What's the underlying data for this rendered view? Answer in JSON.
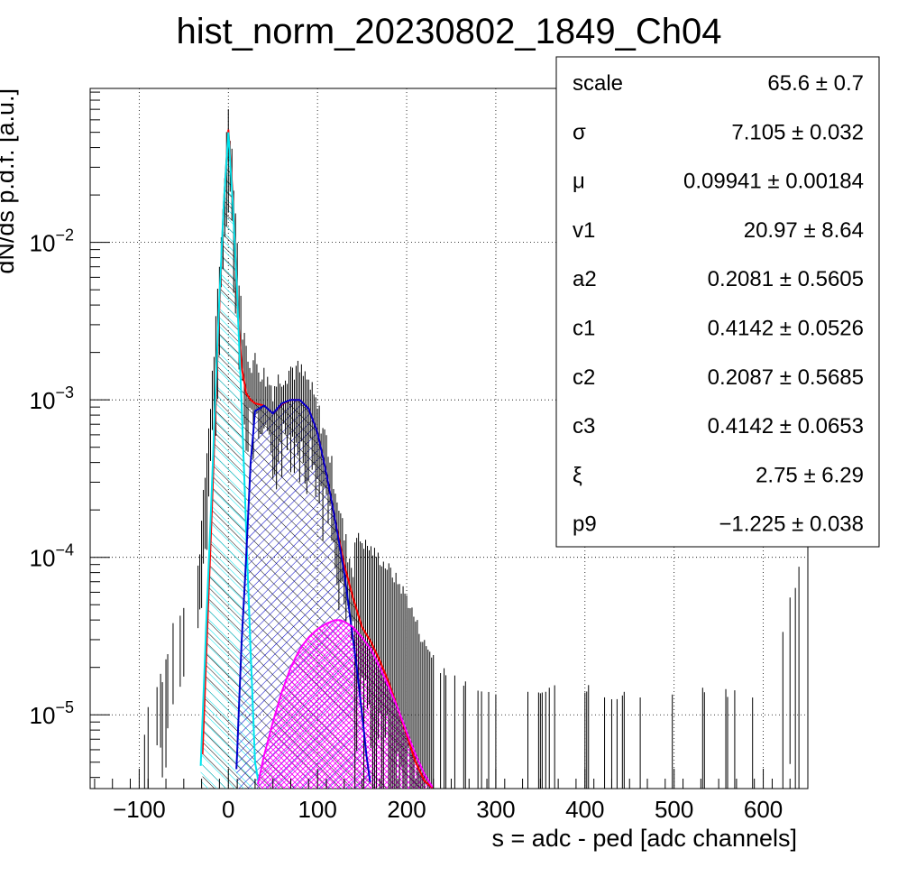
{
  "chart_data": {
    "type": "histogram",
    "title": "hist_norm_20230802_1849_Ch04",
    "xlabel": "s = adc - ped [adc channels]",
    "ylabel": "dN/ds p.d.f. [a.u.]",
    "xlim": [
      -155,
      650
    ],
    "ylim": [
      3.4e-06,
      0.095
    ],
    "ylog": true,
    "grid": true,
    "x_ticks": [
      -100,
      0,
      100,
      200,
      300,
      400,
      500,
      600
    ],
    "x_tick_labels": [
      "−100",
      "0",
      "100",
      "200",
      "300",
      "400",
      "500",
      "600"
    ],
    "y_ticks": [
      {
        "value": 0.01,
        "base": "10",
        "exp": "−2"
      },
      {
        "value": 0.001,
        "base": "10",
        "exp": "−3"
      },
      {
        "value": 0.0001,
        "base": "10",
        "exp": "−4"
      },
      {
        "value": 1e-05,
        "base": "10",
        "exp": "−5"
      }
    ],
    "series": [
      {
        "color": "#000000",
        "style": "histogram with error bars",
        "x": [
          -100,
          -60,
          -40,
          -30,
          -20,
          -10,
          -5,
          0,
          5,
          10,
          15,
          20,
          25,
          30,
          40,
          50,
          60,
          70,
          80,
          90,
          100,
          110,
          120,
          130,
          140,
          150,
          160,
          170,
          180,
          190,
          200,
          220,
          250,
          300,
          400,
          460,
          500,
          600,
          650
        ],
        "y": [
          4e-06,
          2.2e-05,
          3e-05,
          0.0001,
          0.0006,
          0.004,
          0.014,
          0.048,
          0.02,
          0.006,
          0.002,
          0.0013,
          0.0011,
          0.0011,
          0.0009,
          0.00075,
          0.0009,
          0.001,
          0.00095,
          0.0008,
          0.00055,
          0.00035,
          0.00018,
          8.5e-05,
          5e-05,
          4.5e-05,
          4e-05,
          3.5e-05,
          3e-05,
          2.5e-05,
          2e-05,
          1e-05,
          6e-06,
          5e-06,
          5e-06,
          5e-06,
          5e-06,
          5e-06,
          4.5e-05
        ]
      },
      {
        "color": "#ff0000",
        "style": "total fit",
        "x": [
          -30,
          -20,
          -10,
          -5,
          0,
          5,
          10,
          15,
          20,
          25,
          30,
          40,
          50,
          60,
          70,
          80,
          90,
          100,
          110,
          120,
          130,
          140,
          150,
          160,
          170,
          180,
          190,
          200,
          210,
          220,
          230
        ],
        "y": [
          4e-06,
          0.00012,
          0.004,
          0.018,
          0.052,
          0.02,
          0.004,
          0.0016,
          0.0011,
          0.001,
          0.00095,
          0.00092,
          0.00082,
          0.00094,
          0.001,
          0.001,
          0.00088,
          0.00062,
          0.00034,
          0.00017,
          9e-05,
          5.5e-05,
          3.6e-05,
          2.9e-05,
          2.2e-05,
          1.6e-05,
          1.1e-05,
          7.5e-06,
          5e-06,
          3.8e-06,
          3.4e-06
        ]
      },
      {
        "color": "#00e5ee",
        "style": "hatched component",
        "x": [
          -32,
          -25,
          -20,
          -15,
          -10,
          -5,
          0,
          5,
          10,
          15,
          20,
          25,
          30,
          35
        ],
        "y": [
          3.4e-06,
          3.5e-05,
          0.00017,
          0.0009,
          0.0045,
          0.018,
          0.05,
          0.018,
          0.0045,
          0.0009,
          0.00015,
          2.5e-05,
          5e-06,
          3.4e-06
        ]
      },
      {
        "color": "#0000cc",
        "style": "hatched component",
        "x": [
          8,
          10,
          15,
          20,
          25,
          30,
          40,
          50,
          60,
          70,
          80,
          90,
          100,
          110,
          120,
          130,
          140,
          145,
          150,
          155,
          160
        ],
        "y": [
          3.4e-06,
          6e-06,
          3e-05,
          0.0001,
          0.0004,
          0.00085,
          0.00092,
          0.00082,
          0.00095,
          0.001,
          0.001,
          0.00088,
          0.00062,
          0.00034,
          0.00017,
          8e-05,
          3e-05,
          1.8e-05,
          1e-05,
          5.5e-06,
          3.4e-06
        ]
      },
      {
        "color": "#ff00ff",
        "style": "cross-hatched component",
        "x": [
          32,
          40,
          50,
          60,
          70,
          80,
          90,
          100,
          110,
          120,
          125,
          130,
          140,
          150,
          160,
          170,
          180,
          190,
          200,
          210,
          220,
          230
        ],
        "y": [
          3.4e-06,
          5.5e-06,
          9e-06,
          1.4e-05,
          2e-05,
          2.6e-05,
          3.1e-05,
          3.5e-05,
          3.8e-05,
          4e-05,
          4e-05,
          3.9e-05,
          3.6e-05,
          3.1e-05,
          2.6e-05,
          2e-05,
          1.5e-05,
          1.1e-05,
          7.8e-06,
          5.6e-06,
          4.2e-06,
          3.4e-06
        ]
      }
    ]
  },
  "stats": [
    {
      "label": "scale",
      "value": "65.6 ± 0.7"
    },
    {
      "label": "σ",
      "value": "7.105 ± 0.032"
    },
    {
      "label": "μ",
      "value": "0.09941 ± 0.00184"
    },
    {
      "label": "v1",
      "value": "20.97 ± 8.64"
    },
    {
      "label": "a2",
      "value": "0.2081 ± 0.5605"
    },
    {
      "label": "c1",
      "value": "0.4142 ± 0.0526"
    },
    {
      "label": "c2",
      "value": "0.2087 ± 0.5685"
    },
    {
      "label": "c3",
      "value": "0.4142 ± 0.0653"
    },
    {
      "label": "ξ",
      "value": "2.75 ± 6.29"
    },
    {
      "label": "p9",
      "value": "−1.225 ± 0.038"
    }
  ]
}
